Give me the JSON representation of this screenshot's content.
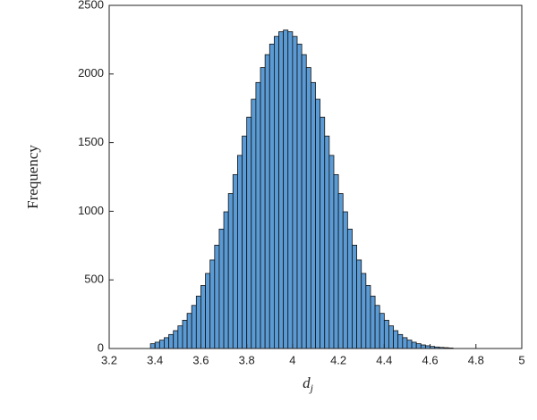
{
  "chart_data": {
    "type": "histogram",
    "y_label": "Frequency",
    "x_label": "d",
    "x_label_subscript": "j",
    "bins": [
      3.38,
      3.4,
      3.42,
      3.44,
      3.46,
      3.48,
      3.5,
      3.52,
      3.54,
      3.56,
      3.58,
      3.6,
      3.62,
      3.64,
      3.66,
      3.68,
      3.7,
      3.72,
      3.74,
      3.76,
      3.78,
      3.8,
      3.82,
      3.84,
      3.86,
      3.88,
      3.9,
      3.92,
      3.94,
      3.96,
      3.98,
      4.0,
      4.02,
      4.04,
      4.06,
      4.08,
      4.1,
      4.12,
      4.14,
      4.16,
      4.18,
      4.2,
      4.22,
      4.24,
      4.26,
      4.28,
      4.3,
      4.32,
      4.34,
      4.36,
      4.38,
      4.4,
      4.42,
      4.44,
      4.46,
      4.48,
      4.5,
      4.52,
      4.54,
      4.56,
      4.58,
      4.6,
      4.62,
      4.64,
      4.66,
      4.68,
      4.7
    ],
    "values": [
      35,
      46,
      61,
      79,
      102,
      130,
      165,
      206,
      256,
      314,
      382,
      459,
      547,
      645,
      753,
      870,
      996,
      1129,
      1267,
      1407,
      1548,
      1685,
      1816,
      1938,
      2047,
      2141,
      2218,
      2274,
      2308,
      2320,
      2308,
      2274,
      2218,
      2141,
      2047,
      1938,
      1816,
      1685,
      1548,
      1407,
      1267,
      1129,
      996,
      870,
      753,
      645,
      547,
      459,
      382,
      314,
      256,
      206,
      165,
      130,
      102,
      79,
      61,
      46,
      35,
      26,
      20,
      15,
      11,
      8,
      6,
      4
    ],
    "color": "#5b9bd5",
    "edgecolor": "#111111",
    "xlim": [
      3.2,
      5
    ],
    "xticks": [
      3.2,
      3.4,
      3.6,
      3.8,
      4,
      4.2,
      4.4,
      4.6,
      4.8,
      5
    ],
    "ylim": [
      0,
      2500
    ],
    "yticks": [
      0,
      500,
      1000,
      1500,
      2000,
      2500
    ]
  }
}
